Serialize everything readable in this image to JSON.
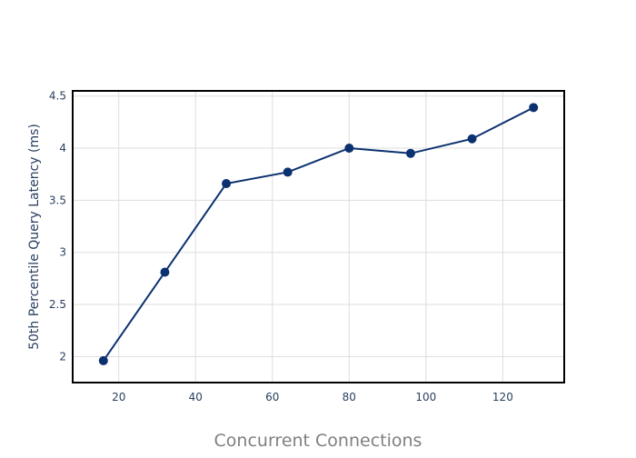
{
  "chart_data": {
    "type": "line",
    "title": "",
    "xlabel": "Concurrent Connections",
    "ylabel": "50th Percentile Query Latency (ms)",
    "xlim": [
      8,
      136
    ],
    "ylim": [
      1.75,
      4.55
    ],
    "grid": true,
    "legend": "none",
    "xticks": [
      20,
      40,
      60,
      80,
      100,
      120
    ],
    "xtick_labels": [
      "20",
      "40",
      "60",
      "80",
      "100",
      "120"
    ],
    "yticks": [
      2,
      2.5,
      3,
      3.5,
      4,
      4.5
    ],
    "ytick_labels": [
      "2",
      "2.5",
      "3",
      "3.5",
      "4",
      "4.5"
    ],
    "series": [
      {
        "x": [
          16,
          32,
          48,
          64,
          80,
          96,
          112,
          128
        ],
        "y": [
          1.96,
          2.81,
          3.66,
          3.77,
          4.0,
          3.95,
          4.09,
          4.39
        ],
        "color": "#0b3170"
      }
    ]
  }
}
